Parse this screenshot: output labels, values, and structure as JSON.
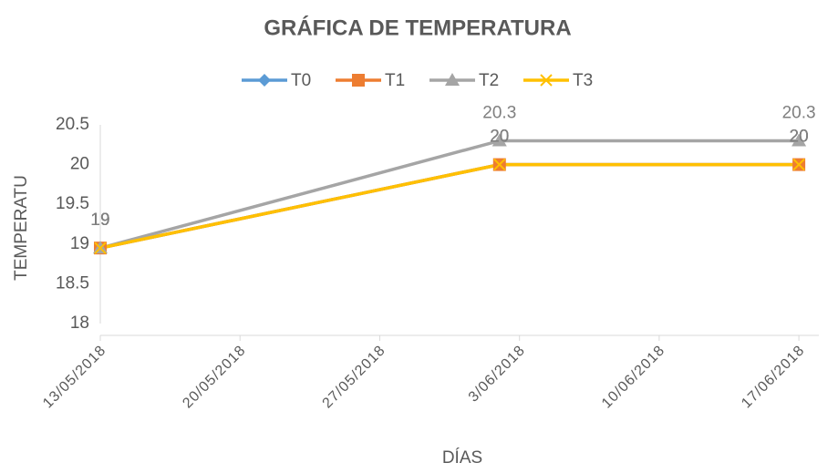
{
  "chart_data": {
    "type": "line",
    "title": "GRÁFICA DE TEMPERATURA",
    "x_label": "DÍAS",
    "y_label": "TEMPERATU",
    "x": [
      "13/05/2018",
      "2/06/2018",
      "17/06/2018"
    ],
    "series": [
      {
        "name": "T0",
        "color": "#5b9bd5",
        "marker": "diamond",
        "values": [
          18.95,
          20,
          20
        ],
        "value_labels": [
          "19",
          "20",
          "20"
        ]
      },
      {
        "name": "T1",
        "color": "#ed7d31",
        "marker": "square",
        "values": [
          18.95,
          20,
          20
        ],
        "value_labels": [
          "19",
          "20",
          "20"
        ]
      },
      {
        "name": "T2",
        "color": "#a5a5a5",
        "marker": "triangle",
        "values": [
          18.95,
          20.3,
          20.3
        ],
        "value_labels": [
          "19",
          "20.3",
          "20.3"
        ]
      },
      {
        "name": "T3",
        "color": "#ffc000",
        "marker": "x",
        "values": [
          18.95,
          20,
          20
        ],
        "value_labels": [
          "19",
          "20",
          "20"
        ]
      }
    ],
    "xlim": [
      "13/05/2018",
      "18/06/2018"
    ],
    "xticks": [
      "13/05/2018",
      "20/05/2018",
      "27/05/2018",
      "3/06/2018",
      "10/06/2018",
      "17/06/2018"
    ],
    "ylim": [
      18,
      20.5
    ],
    "yticks": [
      18,
      18.5,
      19,
      19.5,
      20,
      20.5
    ],
    "grid": false,
    "legend": "top"
  }
}
